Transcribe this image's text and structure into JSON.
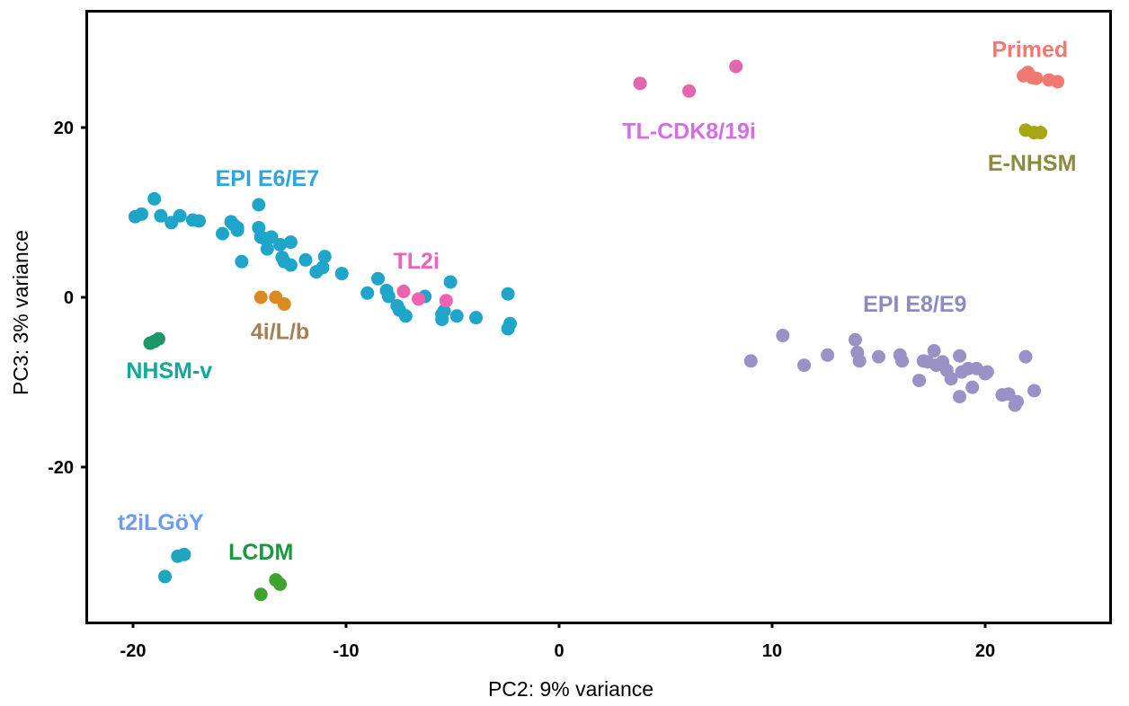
{
  "chart_data": {
    "type": "scatter",
    "title": "",
    "xlabel": "PC2: 9% variance",
    "ylabel": "PC3: 3% variance",
    "xlim": [
      -22.3,
      25.8
    ],
    "ylim": [
      -38.5,
      34.0
    ],
    "xticks": [
      -20,
      -10,
      0,
      10,
      20
    ],
    "yticks": [
      -20,
      0,
      20
    ],
    "xtick_labels": [
      "-20",
      "-10",
      "0",
      "10",
      "20"
    ],
    "ytick_labels": [
      "-20",
      "0",
      "20"
    ],
    "grid": false,
    "legend": "none (direct group labels)",
    "series": [
      {
        "name": "EPI E6/E7",
        "point_color": "#1FA5C9",
        "label_color": "#2AA8DE",
        "label_pos": [
          -13.7,
          13.8
        ],
        "points": [
          [
            -19.9,
            9.5
          ],
          [
            -19.6,
            9.8
          ],
          [
            -19.0,
            11.6
          ],
          [
            -18.7,
            9.6
          ],
          [
            -18.2,
            8.8
          ],
          [
            -17.8,
            9.6
          ],
          [
            -17.2,
            9.1
          ],
          [
            -16.9,
            9.0
          ],
          [
            -15.8,
            7.5
          ],
          [
            -15.4,
            8.9
          ],
          [
            -15.3,
            8.6
          ],
          [
            -15.1,
            8.2
          ],
          [
            -15.1,
            7.9
          ],
          [
            -14.9,
            4.2
          ],
          [
            -14.1,
            10.9
          ],
          [
            -14.1,
            8.2
          ],
          [
            -14.0,
            7.1
          ],
          [
            -13.8,
            6.9
          ],
          [
            -13.7,
            5.7
          ],
          [
            -13.5,
            7.1
          ],
          [
            -13.1,
            6.2
          ],
          [
            -13.0,
            4.7
          ],
          [
            -12.9,
            4.2
          ],
          [
            -12.6,
            6.5
          ],
          [
            -12.6,
            3.8
          ],
          [
            -11.9,
            4.4
          ],
          [
            -11.4,
            3.0
          ],
          [
            -11.1,
            3.5
          ],
          [
            -11.0,
            4.8
          ],
          [
            -10.2,
            2.8
          ],
          [
            -9.0,
            0.5
          ],
          [
            -8.5,
            2.2
          ],
          [
            -8.1,
            0.8
          ],
          [
            -8.0,
            0.1
          ],
          [
            -7.6,
            -1.0
          ],
          [
            -7.5,
            -1.5
          ],
          [
            -7.2,
            -2.2
          ],
          [
            -6.3,
            0.1
          ],
          [
            -5.5,
            -2.0
          ],
          [
            -5.5,
            -2.6
          ],
          [
            -5.4,
            -1.6
          ],
          [
            -5.1,
            1.8
          ],
          [
            -4.8,
            -2.2
          ],
          [
            -3.9,
            -2.4
          ],
          [
            -2.4,
            0.4
          ],
          [
            -2.4,
            -3.7
          ],
          [
            -2.3,
            -3.1
          ]
        ]
      },
      {
        "name": "EPI E8/E9",
        "point_color": "#9A91C6",
        "label_color": "#8B8AC2",
        "label_pos": [
          16.7,
          -1.0
        ],
        "points": [
          [
            9.0,
            -7.5
          ],
          [
            10.5,
            -4.5
          ],
          [
            11.5,
            -8.0
          ],
          [
            12.6,
            -6.8
          ],
          [
            13.9,
            -5.0
          ],
          [
            14.0,
            -6.5
          ],
          [
            14.1,
            -7.5
          ],
          [
            15.0,
            -7.0
          ],
          [
            16.0,
            -6.8
          ],
          [
            16.1,
            -7.5
          ],
          [
            16.9,
            -9.8
          ],
          [
            17.1,
            -7.5
          ],
          [
            17.3,
            -7.6
          ],
          [
            17.6,
            -6.3
          ],
          [
            17.7,
            -8.0
          ],
          [
            18.0,
            -7.6
          ],
          [
            18.2,
            -8.6
          ],
          [
            18.4,
            -9.6
          ],
          [
            18.8,
            -11.7
          ],
          [
            18.8,
            -6.9
          ],
          [
            18.9,
            -8.8
          ],
          [
            19.2,
            -8.4
          ],
          [
            19.4,
            -10.6
          ],
          [
            19.6,
            -8.4
          ],
          [
            20.0,
            -9.0
          ],
          [
            20.1,
            -8.8
          ],
          [
            20.8,
            -11.5
          ],
          [
            21.1,
            -11.4
          ],
          [
            21.4,
            -12.7
          ],
          [
            21.5,
            -12.3
          ],
          [
            21.9,
            -7.0
          ],
          [
            22.3,
            -11.0
          ]
        ]
      },
      {
        "name": "Primed",
        "point_color": "#F07A72",
        "label_color": "#F07A72",
        "label_pos": [
          22.1,
          29.0
        ],
        "points": [
          [
            21.8,
            26.1
          ],
          [
            22.0,
            26.5
          ],
          [
            22.2,
            25.9
          ],
          [
            22.4,
            25.8
          ],
          [
            23.0,
            25.6
          ],
          [
            23.4,
            25.4
          ]
        ]
      },
      {
        "name": "E-NHSM",
        "point_color": "#A7A617",
        "label_color": "#8C8A3C",
        "label_pos": [
          22.2,
          15.6
        ],
        "points": [
          [
            21.9,
            19.7
          ],
          [
            22.3,
            19.4
          ],
          [
            22.6,
            19.4
          ]
        ]
      },
      {
        "name": "TL-CDK8/19i",
        "point_color": "#E466AF",
        "label_color": "#D36FE3",
        "label_pos": [
          6.1,
          19.4
        ],
        "points": [
          [
            3.8,
            25.2
          ],
          [
            6.1,
            24.3
          ],
          [
            8.3,
            27.2
          ]
        ]
      },
      {
        "name": "TL2i",
        "point_color": "#F062AD",
        "label_color": "#F062B9",
        "label_pos": [
          -6.7,
          4.1
        ],
        "points": [
          [
            -7.3,
            0.7
          ],
          [
            -6.6,
            -0.2
          ],
          [
            -5.3,
            -0.4
          ]
        ]
      },
      {
        "name": "4i/L/b",
        "point_color": "#D98B1F",
        "label_color": "#A77F55",
        "label_pos": [
          -13.1,
          -4.2
        ],
        "points": [
          [
            -14.0,
            0.0
          ],
          [
            -13.3,
            0.0
          ],
          [
            -12.9,
            -0.8
          ]
        ]
      },
      {
        "name": "NHSM-v",
        "point_color": "#1E9768",
        "label_color": "#14A899",
        "label_pos": [
          -18.3,
          -8.8
        ],
        "points": [
          [
            -19.2,
            -5.4
          ],
          [
            -19.0,
            -5.2
          ],
          [
            -18.8,
            -4.9
          ]
        ]
      },
      {
        "name": "t2iLGöY",
        "point_color": "#1FA5BE",
        "label_color": "#6D9CF6",
        "label_pos": [
          -18.7,
          -26.7
        ],
        "points": [
          [
            -18.5,
            -32.9
          ],
          [
            -17.9,
            -30.5
          ],
          [
            -17.6,
            -30.3
          ]
        ]
      },
      {
        "name": "LCDM",
        "point_color": "#3FA22F",
        "label_color": "#18993F",
        "label_pos": [
          -14.0,
          -30.2
        ],
        "points": [
          [
            -14.0,
            -35.0
          ],
          [
            -13.3,
            -33.3
          ],
          [
            -13.1,
            -33.8
          ]
        ]
      }
    ]
  }
}
